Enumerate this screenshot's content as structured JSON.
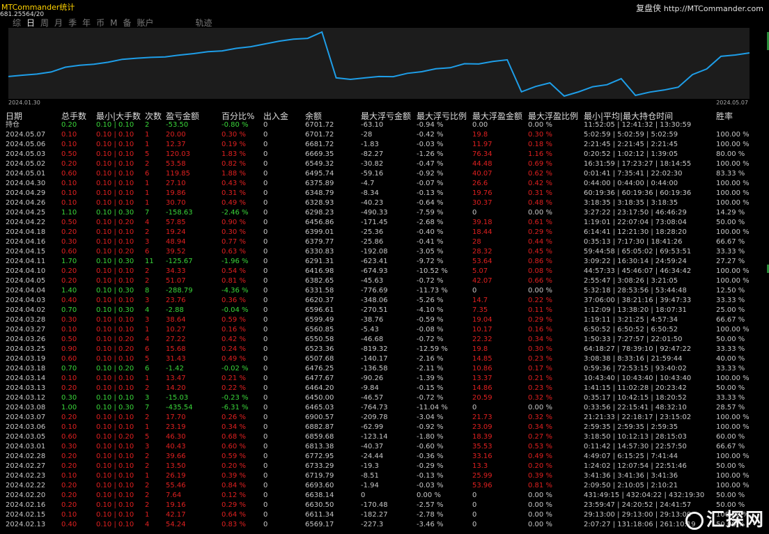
{
  "app": {
    "title": "MTCommander统计",
    "subtitle": "681.25564/20",
    "brand": "复盘侠",
    "brand_url": "http://MTCommander.com"
  },
  "tabs": [
    {
      "label": "综"
    },
    {
      "label": "日"
    },
    {
      "label": "周"
    },
    {
      "label": "月"
    },
    {
      "label": "季"
    },
    {
      "label": "年"
    },
    {
      "label": "币"
    },
    {
      "label": "M"
    },
    {
      "label": "备"
    },
    {
      "label": "账户"
    },
    {
      "label": "轨迹"
    }
  ],
  "active_tab": "日",
  "colors": {
    "line": "#1e9ee8",
    "profit": "#3ad63a",
    "loss": "#e02020",
    "text": "#c8c8c8"
  },
  "chart_data": {
    "type": "line",
    "x_start": "2024.01.30",
    "x_end": "2024.05.07",
    "values": [
      6477.67,
      6490.22,
      6500.25,
      6520.43,
      6565.93,
      6584.42,
      6594.14,
      6612.89,
      6640.88,
      6651.79,
      6659.47,
      6664.2,
      6681.54,
      6695.32,
      6713.67,
      6721.22,
      6745.65,
      6760.77,
      6787.12,
      6813.86,
      6833.01,
      6840.61,
      6900.57,
      6465.03,
      6450.0,
      6464.2,
      6477.67,
      6476.25,
      6507.68,
      6523.36,
      6550.58,
      6560.85,
      6599.49,
      6596.61,
      6620.37,
      6636.52,
      6331.58,
      6382.65,
      6416.98,
      6291.31,
      6330.83,
      6379.77,
      6399.01,
      6456.86,
      6298.23,
      6328.93,
      6348.79,
      6375.89,
      6495.74,
      6549.32,
      6669.35,
      6681.72,
      6701.72
    ]
  },
  "table": {
    "headers": [
      "日期",
      "总手数",
      "最小|大手数",
      "次数",
      "盈亏金额",
      "百分比%",
      "出入金",
      "余额",
      "最大浮亏金额",
      "最大浮亏比例",
      "最大浮盈金额",
      "最大浮盈比例",
      "最小|平均|最大持仓时间",
      "胜率"
    ],
    "rows": [
      {
        "date": "持仓",
        "lots": "0.20",
        "minmax": "0.10 | 0.10",
        "count": "2",
        "pl": "-53.50",
        "pct": "-0.80 %",
        "dep": "0",
        "bal": "6701.72",
        "mfl": "-63.10",
        "mflp": "-0.94 %",
        "mfp": "0.00",
        "mfpp": "0.00 %",
        "hold": "11:52:05 | 12:41:32 | 13:30:59",
        "win": "",
        "type": "loss"
      },
      {
        "date": "2024.05.07",
        "lots": "0.10",
        "minmax": "0.10 | 0.10",
        "count": "1",
        "pl": "20.00",
        "pct": "0.30 %",
        "dep": "0",
        "bal": "6701.72",
        "mfl": "-28",
        "mflp": "-0.42 %",
        "mfp": "19.8",
        "mfpp": "0.30 %",
        "hold": "5:02:59 | 5:02:59 | 5:02:59",
        "win": "100.00 %",
        "type": "profit"
      },
      {
        "date": "2024.05.06",
        "lots": "0.10",
        "minmax": "0.10 | 0.10",
        "count": "1",
        "pl": "12.37",
        "pct": "0.19 %",
        "dep": "0",
        "bal": "6681.72",
        "mfl": "-1.83",
        "mflp": "-0.03 %",
        "mfp": "11.97",
        "mfpp": "0.18 %",
        "hold": "2:21:45 | 2:21:45 | 2:21:45",
        "win": "100.00 %",
        "type": "profit"
      },
      {
        "date": "2024.05.03",
        "lots": "0.50",
        "minmax": "0.10 | 0.10",
        "count": "5",
        "pl": "120.03",
        "pct": "1.83 %",
        "dep": "0",
        "bal": "6669.35",
        "mfl": "-82.27",
        "mflp": "-1.26 %",
        "mfp": "76.34",
        "mfpp": "1.16 %",
        "hold": "0:20:52 | 1:02:12 | 1:39:05",
        "win": "80.00 %",
        "type": "profit"
      },
      {
        "date": "2024.05.02",
        "lots": "0.20",
        "minmax": "0.10 | 0.10",
        "count": "2",
        "pl": "53.58",
        "pct": "0.82 %",
        "dep": "0",
        "bal": "6549.32",
        "mfl": "-30.82",
        "mflp": "-0.47 %",
        "mfp": "44.48",
        "mfpp": "0.69 %",
        "hold": "16:31:59 | 17:23:27 | 18:14:55",
        "win": "100.00 %",
        "type": "profit"
      },
      {
        "date": "2024.05.01",
        "lots": "0.60",
        "minmax": "0.10 | 0.10",
        "count": "6",
        "pl": "119.85",
        "pct": "1.88 %",
        "dep": "0",
        "bal": "6495.74",
        "mfl": "-59.16",
        "mflp": "-0.92 %",
        "mfp": "40.07",
        "mfpp": "0.62 %",
        "hold": "0:01:41 | 7:35:41 | 22:02:30",
        "win": "83.33 %",
        "type": "profit"
      },
      {
        "date": "2024.04.30",
        "lots": "0.10",
        "minmax": "0.10 | 0.10",
        "count": "1",
        "pl": "27.10",
        "pct": "0.43 %",
        "dep": "0",
        "bal": "6375.89",
        "mfl": "-4.7",
        "mflp": "-0.07 %",
        "mfp": "26.6",
        "mfpp": "0.42 %",
        "hold": "0:44:00 | 0:44:00 | 0:44:00",
        "win": "100.00 %",
        "type": "profit"
      },
      {
        "date": "2024.04.29",
        "lots": "0.10",
        "minmax": "0.10 | 0.10",
        "count": "1",
        "pl": "19.86",
        "pct": "0.31 %",
        "dep": "0",
        "bal": "6348.79",
        "mfl": "-8.34",
        "mflp": "-0.13 %",
        "mfp": "19.76",
        "mfpp": "0.31 %",
        "hold": "60:19:36 | 60:19:36 | 60:19:36",
        "win": "100.00 %",
        "type": "profit"
      },
      {
        "date": "2024.04.26",
        "lots": "0.10",
        "minmax": "0.10 | 0.10",
        "count": "1",
        "pl": "30.70",
        "pct": "0.49 %",
        "dep": "0",
        "bal": "6328.93",
        "mfl": "-40.23",
        "mflp": "-0.64 %",
        "mfp": "30.37",
        "mfpp": "0.48 %",
        "hold": "3:18:35 | 3:18:35 | 3:18:35",
        "win": "100.00 %",
        "type": "profit"
      },
      {
        "date": "2024.04.25",
        "lots": "1.10",
        "minmax": "0.10 | 0.30",
        "count": "7",
        "pl": "-158.63",
        "pct": "-2.46 %",
        "dep": "0",
        "bal": "6298.23",
        "mfl": "-490.33",
        "mflp": "-7.59 %",
        "mfp": "0",
        "mfpp": "0.00 %",
        "hold": "3:27:22 | 23:17:50 | 46:46:29",
        "win": "14.29 %",
        "type": "loss"
      },
      {
        "date": "2024.04.22",
        "lots": "0.50",
        "minmax": "0.10 | 0.20",
        "count": "4",
        "pl": "57.85",
        "pct": "0.90 %",
        "dep": "0",
        "bal": "6456.86",
        "mfl": "-171.45",
        "mflp": "-2.68 %",
        "mfp": "39.18",
        "mfpp": "0.61 %",
        "hold": "1:19:01 | 22:07:04 | 73:08:04",
        "win": "50.00 %",
        "type": "profit"
      },
      {
        "date": "2024.04.18",
        "lots": "0.20",
        "minmax": "0.10 | 0.10",
        "count": "2",
        "pl": "19.24",
        "pct": "0.30 %",
        "dep": "0",
        "bal": "6399.01",
        "mfl": "-25.36",
        "mflp": "-0.40 %",
        "mfp": "18.44",
        "mfpp": "0.29 %",
        "hold": "6:14:41 | 12:21:30 | 18:28:20",
        "win": "100.00 %",
        "type": "profit"
      },
      {
        "date": "2024.04.16",
        "lots": "0.30",
        "minmax": "0.10 | 0.10",
        "count": "3",
        "pl": "48.94",
        "pct": "0.77 %",
        "dep": "0",
        "bal": "6379.77",
        "mfl": "-25.86",
        "mflp": "-0.41 %",
        "mfp": "28",
        "mfpp": "0.44 %",
        "hold": "0:35:13 | 7:17:30 | 18:41:26",
        "win": "66.67 %",
        "type": "profit"
      },
      {
        "date": "2024.04.15",
        "lots": "0.60",
        "minmax": "0.10 | 0.20",
        "count": "6",
        "pl": "39.52",
        "pct": "0.63 %",
        "dep": "0",
        "bal": "6330.83",
        "mfl": "-192.08",
        "mflp": "-3.05 %",
        "mfp": "28.32",
        "mfpp": "0.45 %",
        "hold": "59:44:58 | 65:05:02 | 69:53:51",
        "win": "33.33 %",
        "type": "profit"
      },
      {
        "date": "2024.04.11",
        "lots": "1.70",
        "minmax": "0.10 | 0.30",
        "count": "11",
        "pl": "-125.67",
        "pct": "-1.96 %",
        "dep": "0",
        "bal": "6291.31",
        "mfl": "-623.41",
        "mflp": "-9.72 %",
        "mfp": "53.64",
        "mfpp": "0.86 %",
        "hold": "3:09:22 | 16:30:14 | 24:59:24",
        "win": "27.27 %",
        "type": "loss"
      },
      {
        "date": "2024.04.10",
        "lots": "0.20",
        "minmax": "0.10 | 0.10",
        "count": "2",
        "pl": "34.33",
        "pct": "0.54 %",
        "dep": "0",
        "bal": "6416.98",
        "mfl": "-674.93",
        "mflp": "-10.52 %",
        "mfp": "5.07",
        "mfpp": "0.08 %",
        "hold": "44:57:33 | 45:46:07 | 46:34:42",
        "win": "100.00 %",
        "type": "profit"
      },
      {
        "date": "2024.04.05",
        "lots": "0.20",
        "minmax": "0.10 | 0.10",
        "count": "2",
        "pl": "51.07",
        "pct": "0.81 %",
        "dep": "0",
        "bal": "6382.65",
        "mfl": "-45.63",
        "mflp": "-0.72 %",
        "mfp": "42.07",
        "mfpp": "0.66 %",
        "hold": "2:55:47 | 3:08:26 | 3:21:05",
        "win": "100.00 %",
        "type": "profit"
      },
      {
        "date": "2024.04.04",
        "lots": "1.40",
        "minmax": "0.10 | 0.30",
        "count": "8",
        "pl": "-288.79",
        "pct": "-4.36 %",
        "dep": "0",
        "bal": "6331.58",
        "mfl": "-776.69",
        "mflp": "-11.73 %",
        "mfp": "0",
        "mfpp": "0.00 %",
        "hold": "5:32:18 | 28:53:56 | 53:44:48",
        "win": "12.50 %",
        "type": "loss"
      },
      {
        "date": "2024.04.03",
        "lots": "0.40",
        "minmax": "0.10 | 0.10",
        "count": "3",
        "pl": "23.76",
        "pct": "0.36 %",
        "dep": "0",
        "bal": "6620.37",
        "mfl": "-348.06",
        "mflp": "-5.26 %",
        "mfp": "14.7",
        "mfpp": "0.22 %",
        "hold": "37:06:00 | 38:21:16 | 39:47:33",
        "win": "33.33 %",
        "type": "profit"
      },
      {
        "date": "2024.04.02",
        "lots": "0.70",
        "minmax": "0.10 | 0.30",
        "count": "4",
        "pl": "-2.88",
        "pct": "-0.04 %",
        "dep": "0",
        "bal": "6596.61",
        "mfl": "-270.51",
        "mflp": "-4.10 %",
        "mfp": "7.35",
        "mfpp": "0.11 %",
        "hold": "1:12:09 | 13:38:20 | 18:07:31",
        "win": "25.00 %",
        "type": "loss"
      },
      {
        "date": "2024.03.28",
        "lots": "0.30",
        "minmax": "0.10 | 0.10",
        "count": "3",
        "pl": "38.64",
        "pct": "0.59 %",
        "dep": "0",
        "bal": "6599.49",
        "mfl": "-38.76",
        "mflp": "-0.59 %",
        "mfp": "19.04",
        "mfpp": "0.29 %",
        "hold": "1:19:11 | 3:21:25 | 4:57:34",
        "win": "66.67 %",
        "type": "profit"
      },
      {
        "date": "2024.03.27",
        "lots": "0.10",
        "minmax": "0.10 | 0.10",
        "count": "1",
        "pl": "10.27",
        "pct": "0.16 %",
        "dep": "0",
        "bal": "6560.85",
        "mfl": "-5.43",
        "mflp": "-0.08 %",
        "mfp": "10.17",
        "mfpp": "0.16 %",
        "hold": "6:50:52 | 6:50:52 | 6:50:52",
        "win": "100.00 %",
        "type": "profit"
      },
      {
        "date": "2024.03.26",
        "lots": "0.50",
        "minmax": "0.10 | 0.20",
        "count": "4",
        "pl": "27.22",
        "pct": "0.42 %",
        "dep": "0",
        "bal": "6550.58",
        "mfl": "-46.68",
        "mflp": "-0.72 %",
        "mfp": "22.32",
        "mfpp": "0.34 %",
        "hold": "1:50:33 | 7:27:57 | 22:01:50",
        "win": "50.00 %",
        "type": "profit"
      },
      {
        "date": "2024.03.25",
        "lots": "0.90",
        "minmax": "0.10 | 0.20",
        "count": "6",
        "pl": "15.68",
        "pct": "0.24 %",
        "dep": "0",
        "bal": "6523.36",
        "mfl": "-819.32",
        "mflp": "-12.59 %",
        "mfp": "19.8",
        "mfpp": "0.30 %",
        "hold": "64:18:27 | 78:39:10 | 92:47:22",
        "win": "33.33 %",
        "type": "profit"
      },
      {
        "date": "2024.03.19",
        "lots": "0.60",
        "minmax": "0.10 | 0.10",
        "count": "5",
        "pl": "31.43",
        "pct": "0.49 %",
        "dep": "0",
        "bal": "6507.68",
        "mfl": "-140.17",
        "mflp": "-2.16 %",
        "mfp": "14.85",
        "mfpp": "0.23 %",
        "hold": "3:08:38 | 8:33:16 | 21:59:44",
        "win": "40.00 %",
        "type": "profit"
      },
      {
        "date": "2024.03.18",
        "lots": "0.70",
        "minmax": "0.10 | 0.20",
        "count": "6",
        "pl": "-1.42",
        "pct": "-0.02 %",
        "dep": "0",
        "bal": "6476.25",
        "mfl": "-136.58",
        "mflp": "-2.11 %",
        "mfp": "10.86",
        "mfpp": "0.17 %",
        "hold": "0:59:36 | 72:53:15 | 93:40:02",
        "win": "33.33 %",
        "type": "loss"
      },
      {
        "date": "2024.03.14",
        "lots": "0.10",
        "minmax": "0.10 | 0.10",
        "count": "1",
        "pl": "13.47",
        "pct": "0.21 %",
        "dep": "0",
        "bal": "6477.67",
        "mfl": "-90.26",
        "mflp": "-1.39 %",
        "mfp": "13.37",
        "mfpp": "0.21 %",
        "hold": "10:43:40 | 10:43:40 | 10:43:40",
        "win": "100.00 %",
        "type": "profit"
      },
      {
        "date": "2024.03.13",
        "lots": "0.20",
        "minmax": "0.10 | 0.10",
        "count": "2",
        "pl": "14.20",
        "pct": "0.22 %",
        "dep": "0",
        "bal": "6464.20",
        "mfl": "-9.84",
        "mflp": "-0.15 %",
        "mfp": "14.86",
        "mfpp": "0.23 %",
        "hold": "1:41:15 | 11:02:28 | 20:23:42",
        "win": "50.00 %",
        "type": "profit"
      },
      {
        "date": "2024.03.12",
        "lots": "0.30",
        "minmax": "0.10 | 0.10",
        "count": "3",
        "pl": "-15.03",
        "pct": "-0.23 %",
        "dep": "0",
        "bal": "6450.00",
        "mfl": "-46.57",
        "mflp": "-0.72 %",
        "mfp": "20.59",
        "mfpp": "0.32 %",
        "hold": "0:35:17 | 10:42:15 | 18:20:52",
        "win": "33.33 %",
        "type": "loss"
      },
      {
        "date": "2024.03.08",
        "lots": "1.00",
        "minmax": "0.10 | 0.30",
        "count": "7",
        "pl": "-435.54",
        "pct": "-6.31 %",
        "dep": "0",
        "bal": "6465.03",
        "mfl": "-764.73",
        "mflp": "-11.04 %",
        "mfp": "0",
        "mfpp": "0.00 %",
        "hold": "0:33:56 | 22:15:41 | 48:32:10",
        "win": "28.57 %",
        "type": "loss"
      },
      {
        "date": "2024.03.07",
        "lots": "0.20",
        "minmax": "0.10 | 0.10",
        "count": "2",
        "pl": "17.70",
        "pct": "0.26 %",
        "dep": "0",
        "bal": "6900.57",
        "mfl": "-209.78",
        "mflp": "-3.04 %",
        "mfp": "21.73",
        "mfpp": "0.32 %",
        "hold": "21:21:33 | 22:18:17 | 23:15:02",
        "win": "100.00 %",
        "type": "profit"
      },
      {
        "date": "2024.03.06",
        "lots": "0.10",
        "minmax": "0.10 | 0.10",
        "count": "1",
        "pl": "23.19",
        "pct": "0.34 %",
        "dep": "0",
        "bal": "6882.87",
        "mfl": "-62.99",
        "mflp": "-0.92 %",
        "mfp": "23.09",
        "mfpp": "0.34 %",
        "hold": "2:59:35 | 2:59:35 | 2:59:35",
        "win": "100.00 %",
        "type": "profit"
      },
      {
        "date": "2024.03.05",
        "lots": "0.60",
        "minmax": "0.10 | 0.20",
        "count": "5",
        "pl": "46.30",
        "pct": "0.68 %",
        "dep": "0",
        "bal": "6859.68",
        "mfl": "-123.14",
        "mflp": "-1.80 %",
        "mfp": "18.39",
        "mfpp": "0.27 %",
        "hold": "3:18:50 | 10:12:13 | 28:15:03",
        "win": "60.00 %",
        "type": "profit"
      },
      {
        "date": "2024.03.01",
        "lots": "0.30",
        "minmax": "0.10 | 0.10",
        "count": "3",
        "pl": "40.43",
        "pct": "0.60 %",
        "dep": "0",
        "bal": "6813.38",
        "mfl": "-40.37",
        "mflp": "-0.60 %",
        "mfp": "35.53",
        "mfpp": "0.53 %",
        "hold": "0:11:42 | 14:57:30 | 22:57:50",
        "win": "66.67 %",
        "type": "profit"
      },
      {
        "date": "2024.02.28",
        "lots": "0.20",
        "minmax": "0.10 | 0.10",
        "count": "2",
        "pl": "39.66",
        "pct": "0.59 %",
        "dep": "0",
        "bal": "6772.95",
        "mfl": "-24.44",
        "mflp": "-0.36 %",
        "mfp": "33.16",
        "mfpp": "0.49 %",
        "hold": "4:49:07 | 6:15:25 | 7:41:44",
        "win": "100.00 %",
        "type": "profit"
      },
      {
        "date": "2024.02.27",
        "lots": "0.20",
        "minmax": "0.10 | 0.10",
        "count": "2",
        "pl": "13.50",
        "pct": "0.20 %",
        "dep": "0",
        "bal": "6733.29",
        "mfl": "-19.3",
        "mflp": "-0.29 %",
        "mfp": "13.3",
        "mfpp": "0.20 %",
        "hold": "1:24:02 | 12:07:54 | 22:51:46",
        "win": "50.00 %",
        "type": "profit"
      },
      {
        "date": "2024.02.23",
        "lots": "0.10",
        "minmax": "0.10 | 0.10",
        "count": "1",
        "pl": "26.19",
        "pct": "0.39 %",
        "dep": "0",
        "bal": "6719.79",
        "mfl": "-8.51",
        "mflp": "-0.13 %",
        "mfp": "25.99",
        "mfpp": "0.39 %",
        "hold": "3:41:36 | 3:41:36 | 3:41:36",
        "win": "100.00 %",
        "type": "profit"
      },
      {
        "date": "2024.02.22",
        "lots": "0.20",
        "minmax": "0.10 | 0.10",
        "count": "2",
        "pl": "55.46",
        "pct": "0.84 %",
        "dep": "0",
        "bal": "6693.60",
        "mfl": "-1.94",
        "mflp": "-0.03 %",
        "mfp": "53.96",
        "mfpp": "0.81 %",
        "hold": "2:09:50 | 2:10:05 | 2:10:21",
        "win": "100.00 %",
        "type": "profit"
      },
      {
        "date": "2024.02.20",
        "lots": "0.20",
        "minmax": "0.10 | 0.10",
        "count": "2",
        "pl": "7.64",
        "pct": "0.12 %",
        "dep": "0",
        "bal": "6638.14",
        "mfl": "0",
        "mflp": "0.00 %",
        "mfp": "0",
        "mfpp": "0.00 %",
        "hold": "431:49:15 | 432:04:22 | 432:19:30",
        "win": "50.00 %",
        "type": "profit"
      },
      {
        "date": "2024.02.16",
        "lots": "0.20",
        "minmax": "0.10 | 0.10",
        "count": "2",
        "pl": "19.16",
        "pct": "0.29 %",
        "dep": "0",
        "bal": "6630.50",
        "mfl": "-170.48",
        "mflp": "-2.57 %",
        "mfp": "0",
        "mfpp": "0.00 %",
        "hold": "23:59:47 | 24:20:52 | 24:41:57",
        "win": "50.00 %",
        "type": "profit"
      },
      {
        "date": "2024.02.15",
        "lots": "0.10",
        "minmax": "0.10 | 0.10",
        "count": "1",
        "pl": "42.17",
        "pct": "0.64 %",
        "dep": "0",
        "bal": "6611.34",
        "mfl": "-182.27",
        "mflp": "-2.78 %",
        "mfp": "0",
        "mfpp": "0.00 %",
        "hold": "29:13:00 | 29:13:00 | 29:13:00",
        "win": "100.00 %",
        "type": "profit"
      },
      {
        "date": "2024.02.13",
        "lots": "0.40",
        "minmax": "0.10 | 0.10",
        "count": "4",
        "pl": "54.24",
        "pct": "0.83 %",
        "dep": "0",
        "bal": "6569.17",
        "mfl": "-227.3",
        "mflp": "-3.46 %",
        "mfp": "0",
        "mfpp": "0.00 %",
        "hold": "2:07:27 | 131:18:06 | 261:10:19",
        "win": "50.00 %",
        "type": "profit"
      }
    ]
  },
  "watermark": "汇探网"
}
